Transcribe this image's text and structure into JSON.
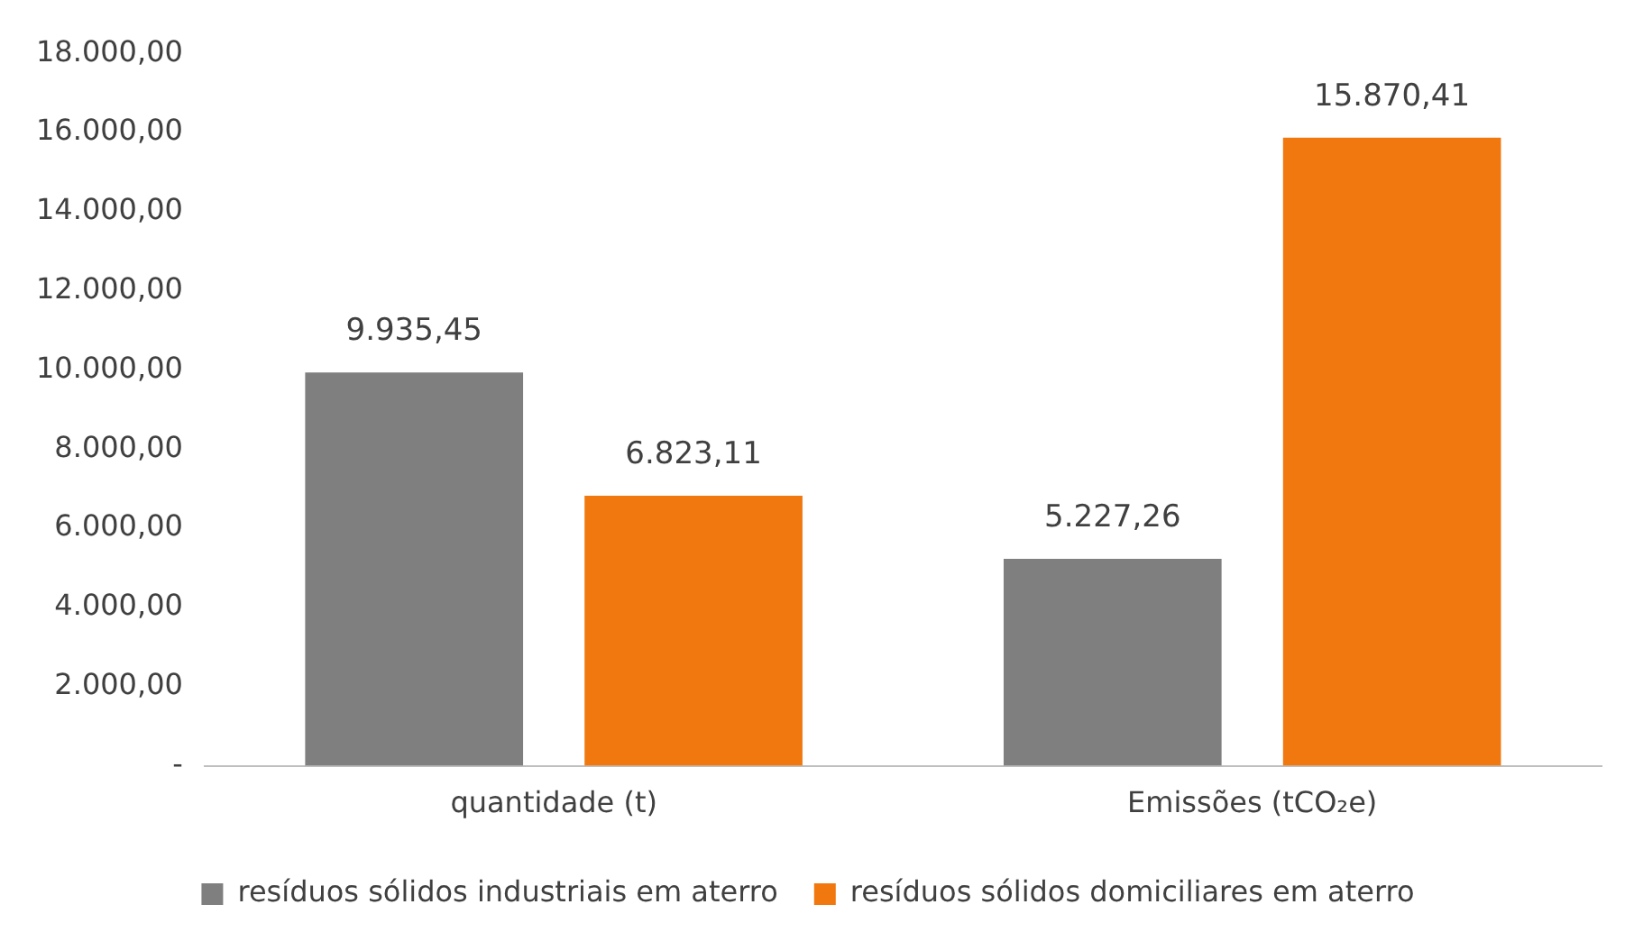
{
  "chart_data": {
    "type": "bar",
    "categories": [
      "quantidade (t)",
      "Emissões (tCO₂e)"
    ],
    "series": [
      {
        "name": "resíduos sólidos industriais em aterro",
        "color": "#7f7f7f",
        "values": [
          9935.45,
          5227.26
        ],
        "value_labels": [
          "9.935,45",
          "5.227,26"
        ]
      },
      {
        "name": "resíduos sólidos domiciliares em aterro",
        "color": "#f0780f",
        "values": [
          6823.11,
          15870.41
        ],
        "value_labels": [
          "6.823,11",
          "15.870,41"
        ]
      }
    ],
    "ylim": [
      0,
      18000
    ],
    "yticks": [
      {
        "value": 0,
        "label": "-"
      },
      {
        "value": 2000,
        "label": "2.000,00"
      },
      {
        "value": 4000,
        "label": "4.000,00"
      },
      {
        "value": 6000,
        "label": "6.000,00"
      },
      {
        "value": 8000,
        "label": "8.000,00"
      },
      {
        "value": 10000,
        "label": "10.000,00"
      },
      {
        "value": 12000,
        "label": "12.000,00"
      },
      {
        "value": 14000,
        "label": "14.000,00"
      },
      {
        "value": 16000,
        "label": "16.000,00"
      },
      {
        "value": 18000,
        "label": "18.000,00"
      }
    ],
    "grid": false,
    "legend": "bottom"
  }
}
